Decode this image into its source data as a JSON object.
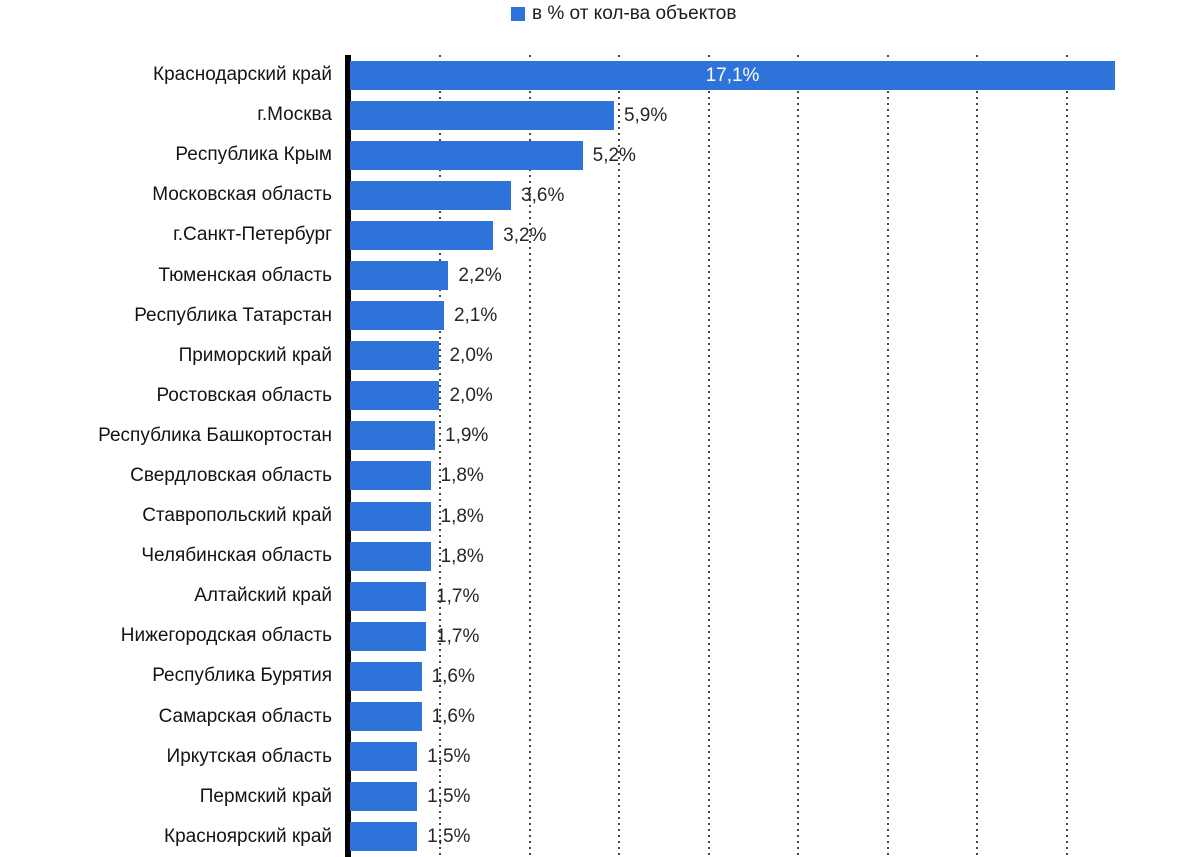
{
  "legend": {
    "label": "в % от кол-ва объектов",
    "swatch_color": "#2e73d9"
  },
  "chart_data": {
    "type": "bar",
    "orientation": "horizontal",
    "title": "",
    "xlabel": "",
    "ylabel": "",
    "series_name": "в % от кол-ва объектов",
    "categories": [
      "Краснодарский край",
      "г.Москва",
      "Республика Крым",
      "Московская область",
      "г.Санкт-Петербург",
      "Тюменская область",
      "Республика Татарстан",
      "Приморский край",
      "Ростовская область",
      "Республика Башкортостан",
      "Свердловская область",
      "Ставропольский край",
      "Челябинская область",
      "Алтайский край",
      "Нижегородская область",
      "Республика Бурятия",
      "Самарская область",
      "Иркутская область",
      "Пермский край",
      "Красноярский край"
    ],
    "values": [
      17.1,
      5.9,
      5.2,
      3.6,
      3.2,
      2.2,
      2.1,
      2.0,
      2.0,
      1.9,
      1.8,
      1.8,
      1.8,
      1.7,
      1.7,
      1.6,
      1.6,
      1.5,
      1.5,
      1.5
    ],
    "value_labels": [
      "17,1%",
      "5,9%",
      "5,2%",
      "3,6%",
      "3,2%",
      "2,2%",
      "2,1%",
      "2,0%",
      "2,0%",
      "1,9%",
      "1,8%",
      "1,8%",
      "1,8%",
      "1,7%",
      "1,7%",
      "1,6%",
      "1,6%",
      "1,5%",
      "1,5%",
      "1,5%"
    ],
    "xlim": [
      0,
      19
    ],
    "gridline_step": 2,
    "grid": "dotted-vertical",
    "legend_position": "top",
    "bar_color": "#2e73d9",
    "value_label_inside_threshold": 10
  }
}
